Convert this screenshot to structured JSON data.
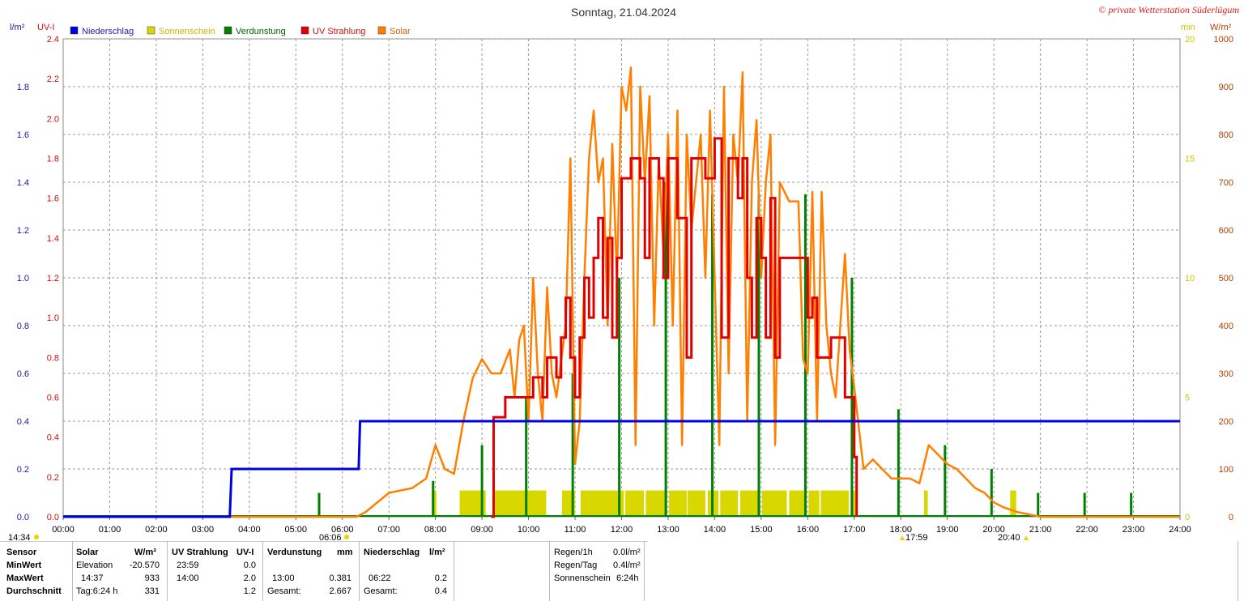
{
  "header": {
    "title": "Sonntag, 21.04.2024",
    "credit": "© private Wetterstation Süderlügum"
  },
  "axes": {
    "left_unit_outer": "l/m²",
    "left_unit_inner": "UV-I",
    "right_unit_inner": "min",
    "right_unit_outer": "W/m²",
    "rain_ticks": [
      "0.0",
      "0.2",
      "0.4",
      "0.6",
      "0.8",
      "1.0",
      "1.2",
      "1.4",
      "1.6",
      "1.8"
    ],
    "uv_ticks": [
      "0.0",
      "0.2",
      "0.4",
      "0.6",
      "0.8",
      "1.0",
      "1.2",
      "1.4",
      "1.6",
      "1.8",
      "2.0",
      "2.2",
      "2.4"
    ],
    "min_ticks": [
      "0",
      "5",
      "10",
      "15",
      "20"
    ],
    "solar_ticks": [
      "0",
      "100",
      "200",
      "300",
      "400",
      "500",
      "600",
      "700",
      "800",
      "900",
      "1000"
    ],
    "x_ticks": [
      "00:00",
      "01:00",
      "02:00",
      "03:00",
      "04:00",
      "05:00",
      "06:00",
      "07:00",
      "08:00",
      "09:00",
      "10:00",
      "11:00",
      "12:00",
      "13:00",
      "14:00",
      "15:00",
      "16:00",
      "17:00",
      "18:00",
      "19:00",
      "20:00",
      "21:00",
      "22:00",
      "23:00",
      "24:00"
    ],
    "colors": {
      "rain_axis": "#1a1aa8",
      "uv_axis": "#d01010",
      "min_axis": "#c8c800",
      "solar_axis": "#b04000",
      "grid": "#999999"
    }
  },
  "legend": [
    {
      "label": "Niederschlag",
      "color": "#0000e0"
    },
    {
      "label": "Sonnenschein",
      "color": "#d8d800"
    },
    {
      "label": "Verdunstung",
      "color": "#008000"
    },
    {
      "label": "UV Strahlung",
      "color": "#e00000"
    },
    {
      "label": "Solar",
      "color": "#ff8000"
    }
  ],
  "markers": {
    "moonrise": "14:34",
    "sunrise": "06:06",
    "moonset": "17:59",
    "sunset": "20:40"
  },
  "chart_data": {
    "type": "line",
    "title": "Sonntag, 21.04.2024",
    "xlabel": "",
    "xlim": [
      0,
      24
    ],
    "series": [
      {
        "name": "Niederschlag",
        "unit": "l/m²",
        "ylim": [
          0,
          2.0
        ],
        "color": "#0000e0",
        "points": [
          [
            0,
            0
          ],
          [
            3.58,
            0
          ],
          [
            3.62,
            0.2
          ],
          [
            6.35,
            0.2
          ],
          [
            6.38,
            0.4
          ],
          [
            24,
            0.4
          ]
        ]
      },
      {
        "name": "UV Strahlung",
        "unit": "UV-I",
        "ylim": [
          0,
          2.4
        ],
        "color": "#e00000",
        "points": [
          [
            9.2,
            0
          ],
          [
            9.25,
            0.5
          ],
          [
            9.45,
            0.5
          ],
          [
            9.5,
            0.6
          ],
          [
            10.0,
            0.6
          ],
          [
            10.1,
            0.7
          ],
          [
            10.3,
            0.6
          ],
          [
            10.4,
            0.8
          ],
          [
            10.6,
            0.7
          ],
          [
            10.7,
            0.9
          ],
          [
            10.8,
            1.1
          ],
          [
            10.9,
            0.8
          ],
          [
            11.0,
            0.6
          ],
          [
            11.1,
            0.9
          ],
          [
            11.2,
            1.2
          ],
          [
            11.3,
            1.0
          ],
          [
            11.4,
            1.3
          ],
          [
            11.5,
            1.5
          ],
          [
            11.6,
            1.0
          ],
          [
            11.7,
            1.4
          ],
          [
            11.8,
            0.9
          ],
          [
            11.9,
            1.3
          ],
          [
            12.0,
            1.7
          ],
          [
            12.2,
            1.8
          ],
          [
            12.4,
            1.7
          ],
          [
            12.5,
            1.3
          ],
          [
            12.6,
            1.8
          ],
          [
            12.8,
            1.7
          ],
          [
            12.9,
            1.2
          ],
          [
            13.0,
            1.8
          ],
          [
            13.2,
            1.5
          ],
          [
            13.4,
            0.8
          ],
          [
            13.5,
            1.8
          ],
          [
            13.8,
            1.7
          ],
          [
            14.0,
            1.9
          ],
          [
            14.15,
            0.9
          ],
          [
            14.3,
            1.8
          ],
          [
            14.5,
            1.6
          ],
          [
            14.6,
            1.8
          ],
          [
            14.7,
            1.2
          ],
          [
            14.8,
            0.9
          ],
          [
            14.9,
            1.5
          ],
          [
            15.0,
            1.3
          ],
          [
            15.1,
            0.9
          ],
          [
            15.2,
            1.6
          ],
          [
            15.3,
            0.8
          ],
          [
            15.4,
            1.3
          ],
          [
            15.6,
            1.3
          ],
          [
            15.9,
            1.3
          ],
          [
            16.0,
            1.0
          ],
          [
            16.1,
            1.1
          ],
          [
            16.2,
            0.8
          ],
          [
            16.3,
            0.8
          ],
          [
            16.5,
            0.9
          ],
          [
            16.7,
            0.9
          ],
          [
            16.8,
            0.6
          ],
          [
            16.9,
            0.6
          ],
          [
            17.0,
            0.3
          ],
          [
            17.05,
            0
          ]
        ]
      },
      {
        "name": "Solar",
        "unit": "W/m²",
        "ylim": [
          0,
          1000
        ],
        "color": "#ff8000",
        "points": [
          [
            0,
            0
          ],
          [
            6.3,
            0
          ],
          [
            6.5,
            10
          ],
          [
            7.0,
            50
          ],
          [
            7.5,
            60
          ],
          [
            7.8,
            80
          ],
          [
            8.0,
            150
          ],
          [
            8.2,
            100
          ],
          [
            8.4,
            90
          ],
          [
            8.6,
            200
          ],
          [
            8.8,
            290
          ],
          [
            9.0,
            330
          ],
          [
            9.2,
            300
          ],
          [
            9.4,
            300
          ],
          [
            9.6,
            350
          ],
          [
            9.7,
            250
          ],
          [
            9.8,
            370
          ],
          [
            9.9,
            400
          ],
          [
            10.0,
            200
          ],
          [
            10.1,
            500
          ],
          [
            10.2,
            300
          ],
          [
            10.3,
            200
          ],
          [
            10.4,
            480
          ],
          [
            10.5,
            300
          ],
          [
            10.6,
            250
          ],
          [
            10.8,
            400
          ],
          [
            10.9,
            750
          ],
          [
            11.0,
            110
          ],
          [
            11.1,
            200
          ],
          [
            11.2,
            500
          ],
          [
            11.3,
            750
          ],
          [
            11.4,
            850
          ],
          [
            11.5,
            700
          ],
          [
            11.6,
            750
          ],
          [
            11.7,
            400
          ],
          [
            11.8,
            780
          ],
          [
            11.9,
            500
          ],
          [
            12.0,
            900
          ],
          [
            12.1,
            850
          ],
          [
            12.2,
            940
          ],
          [
            12.3,
            150
          ],
          [
            12.4,
            900
          ],
          [
            12.5,
            700
          ],
          [
            12.6,
            880
          ],
          [
            12.7,
            400
          ],
          [
            12.8,
            750
          ],
          [
            12.9,
            550
          ],
          [
            13.0,
            800
          ],
          [
            13.1,
            400
          ],
          [
            13.2,
            850
          ],
          [
            13.3,
            150
          ],
          [
            13.4,
            800
          ],
          [
            13.5,
            600
          ],
          [
            13.6,
            700
          ],
          [
            13.7,
            800
          ],
          [
            13.8,
            500
          ],
          [
            13.9,
            850
          ],
          [
            14.0,
            500
          ],
          [
            14.1,
            150
          ],
          [
            14.2,
            900
          ],
          [
            14.3,
            300
          ],
          [
            14.4,
            800
          ],
          [
            14.5,
            700
          ],
          [
            14.6,
            930
          ],
          [
            14.7,
            200
          ],
          [
            14.8,
            700
          ],
          [
            14.9,
            830
          ],
          [
            15.0,
            500
          ],
          [
            15.1,
            700
          ],
          [
            15.2,
            800
          ],
          [
            15.3,
            150
          ],
          [
            15.4,
            700
          ],
          [
            15.6,
            660
          ],
          [
            15.8,
            660
          ],
          [
            15.9,
            330
          ],
          [
            16.0,
            300
          ],
          [
            16.1,
            680
          ],
          [
            16.2,
            200
          ],
          [
            16.3,
            680
          ],
          [
            16.4,
            400
          ],
          [
            16.5,
            300
          ],
          [
            16.6,
            250
          ],
          [
            16.7,
            400
          ],
          [
            16.8,
            550
          ],
          [
            16.9,
            350
          ],
          [
            17.0,
            270
          ],
          [
            17.2,
            100
          ],
          [
            17.4,
            120
          ],
          [
            17.6,
            100
          ],
          [
            17.8,
            80
          ],
          [
            18.0,
            80
          ],
          [
            18.2,
            80
          ],
          [
            18.4,
            70
          ],
          [
            18.6,
            150
          ],
          [
            18.8,
            130
          ],
          [
            19.0,
            110
          ],
          [
            19.2,
            100
          ],
          [
            19.4,
            80
          ],
          [
            19.6,
            60
          ],
          [
            19.8,
            50
          ],
          [
            20.0,
            30
          ],
          [
            20.2,
            20
          ],
          [
            20.5,
            10
          ],
          [
            21.0,
            0
          ],
          [
            24,
            0
          ]
        ]
      },
      {
        "name": "Sonnenschein",
        "unit": "min",
        "ylim": [
          0,
          20
        ],
        "color": "#d8d800",
        "kind": "bars",
        "intervals": [
          [
            7.92,
            8.02
          ],
          [
            8.52,
            9.08
          ],
          [
            9.25,
            10.38
          ],
          [
            10.72,
            11.0
          ],
          [
            11.12,
            12.05
          ],
          [
            12.08,
            12.48
          ],
          [
            12.52,
            12.98
          ],
          [
            13.02,
            13.4
          ],
          [
            13.42,
            13.8
          ],
          [
            13.85,
            14.08
          ],
          [
            14.12,
            14.5
          ],
          [
            14.55,
            14.98
          ],
          [
            15.02,
            15.55
          ],
          [
            15.6,
            15.98
          ],
          [
            16.02,
            16.25
          ],
          [
            16.28,
            16.88
          ],
          [
            16.92,
            17.02
          ],
          [
            18.5,
            18.58
          ],
          [
            20.35,
            20.48
          ]
        ]
      },
      {
        "name": "Verdunstung",
        "unit": "mm",
        "color": "#008000",
        "kind": "spikes",
        "spikes": [
          [
            5.5,
            0.02
          ],
          [
            7.95,
            0.03
          ],
          [
            9.0,
            0.06
          ],
          [
            9.95,
            0.1
          ],
          [
            10.95,
            0.12
          ],
          [
            11.95,
            0.2
          ],
          [
            12.95,
            0.28
          ],
          [
            13.95,
            0.27
          ],
          [
            14.95,
            0.27
          ],
          [
            15.95,
            0.27
          ],
          [
            16.95,
            0.2
          ],
          [
            17.95,
            0.09
          ],
          [
            18.95,
            0.06
          ],
          [
            19.95,
            0.04
          ],
          [
            20.95,
            0.02
          ],
          [
            21.95,
            0.02
          ],
          [
            22.95,
            0.02
          ]
        ]
      }
    ]
  },
  "summary_table": {
    "row_labels": [
      "Sensor",
      "MinWert",
      "MaxWert",
      "Durchschnitt"
    ],
    "solar": {
      "header": "Solar",
      "unit": "W/m²",
      "r1_label": "Elevation",
      "r1_value": "-20.570",
      "r2_label": "14:37",
      "r2_value": "933",
      "r3_label": "Tag:6:24 h",
      "r3_value": "331"
    },
    "uv": {
      "header": "UV Strahlung",
      "unit": "UV-I",
      "r1_label": "23:59",
      "r1_value": "0.0",
      "r2_label": "14:00",
      "r2_value": "2.0",
      "r3_value": "1.2"
    },
    "evap": {
      "header": "Verdunstung",
      "unit": "mm",
      "r2_label": "13:00",
      "r2_value": "0.381",
      "r3_label": "Gesamt:",
      "r3_value": "2.667"
    },
    "rain": {
      "header": "Niederschlag",
      "unit": "l/m²",
      "r2_label": "06:22",
      "r2_value": "0.2",
      "r3_label": "Gesamt:",
      "r3_value": "0.4"
    },
    "extra": [
      {
        "label": "Regen/1h",
        "value": "0.0l/m²"
      },
      {
        "label": "Regen/Tag",
        "value": "0.4l/m²"
      },
      {
        "label": "Sonnenschein",
        "value": "6:24h"
      }
    ]
  }
}
